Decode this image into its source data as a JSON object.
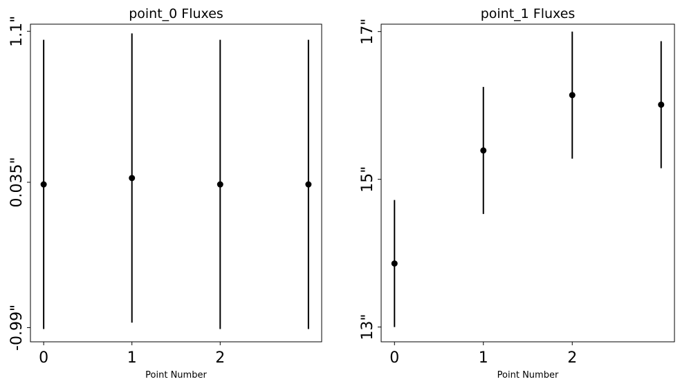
{
  "chart_data": [
    {
      "type": "scatter",
      "title": "point_0 Fluxes",
      "xlabel": "Point Number",
      "ylabel": "",
      "x_ticks": [
        0,
        1,
        2
      ],
      "x_tick_labels": [
        "0",
        "1",
        "2"
      ],
      "xlim": [
        -0.15,
        3.15
      ],
      "y_ticks": [
        -0.99,
        0.035,
        1.1
      ],
      "y_tick_labels": [
        "-0.99\"",
        "0.035\"",
        "1.1\""
      ],
      "ylim": [
        -1.09,
        1.15
      ],
      "series": [
        {
          "x": [
            0,
            1,
            2,
            3
          ],
          "y": [
            0.02,
            0.065,
            0.02,
            0.02
          ],
          "yerr": [
            1.02,
            1.02,
            1.02,
            1.02
          ],
          "color": "#000000"
        }
      ],
      "grid": false
    },
    {
      "type": "scatter",
      "title": "point_1 Fluxes",
      "xlabel": "Point Number",
      "ylabel": "",
      "x_ticks": [
        0,
        1,
        2
      ],
      "x_tick_labels": [
        "0",
        "1",
        "2"
      ],
      "xlim": [
        -0.15,
        3.15
      ],
      "y_ticks": [
        13,
        15,
        17
      ],
      "y_tick_labels": [
        "13\"",
        "15\"",
        "17\""
      ],
      "ylim": [
        12.8,
        17.1
      ],
      "series": [
        {
          "x": [
            0,
            1,
            2,
            3
          ],
          "y": [
            13.86,
            15.39,
            16.14,
            16.01
          ],
          "yerr": [
            0.86,
            0.86,
            0.86,
            0.86
          ],
          "color": "#000000"
        }
      ],
      "grid": false
    }
  ]
}
